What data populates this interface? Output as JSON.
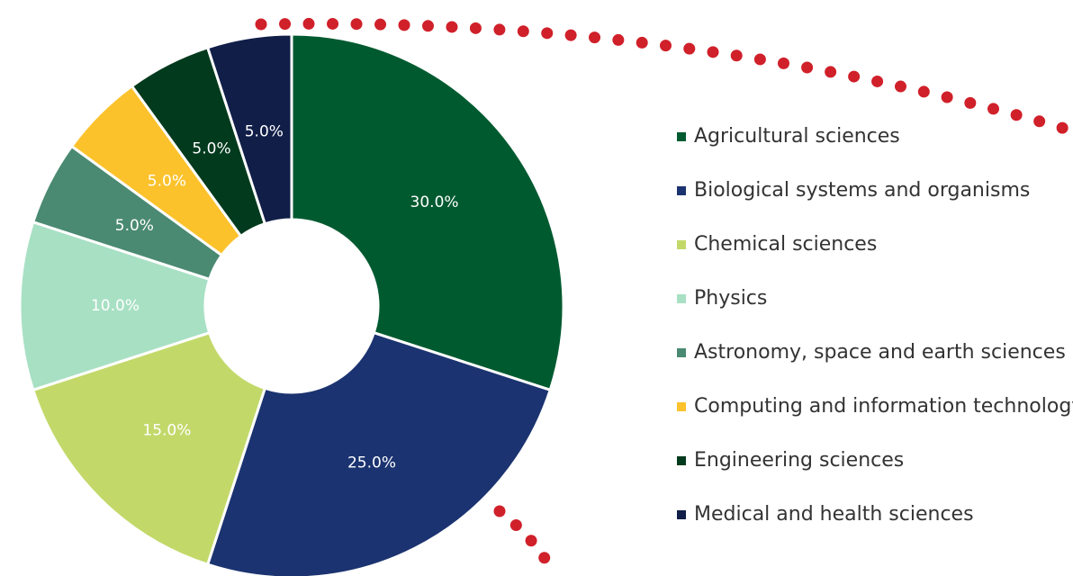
{
  "chart_data": {
    "type": "pie",
    "categories": [
      "Agricultural sciences",
      "Biological systems and organisms",
      "Chemical sciences",
      "Physics",
      "Astronomy, space and earth sciences",
      "Computing and information technology",
      "Engineering sciences",
      "Medical and health sciences"
    ],
    "values": [
      30,
      25,
      15,
      10,
      5,
      5,
      5,
      5
    ],
    "value_labels": [
      "30.0%",
      "25.0%",
      "15.0%",
      "10.0%",
      "5.0%",
      "5.0%",
      "5.0%",
      "5.0%"
    ],
    "colors": [
      "#005a30",
      "#1b3370",
      "#c2d96a",
      "#a8e0c4",
      "#4a8a72",
      "#fbc22c",
      "#013a1d",
      "#101e48"
    ],
    "donut": true,
    "legend": "right"
  }
}
